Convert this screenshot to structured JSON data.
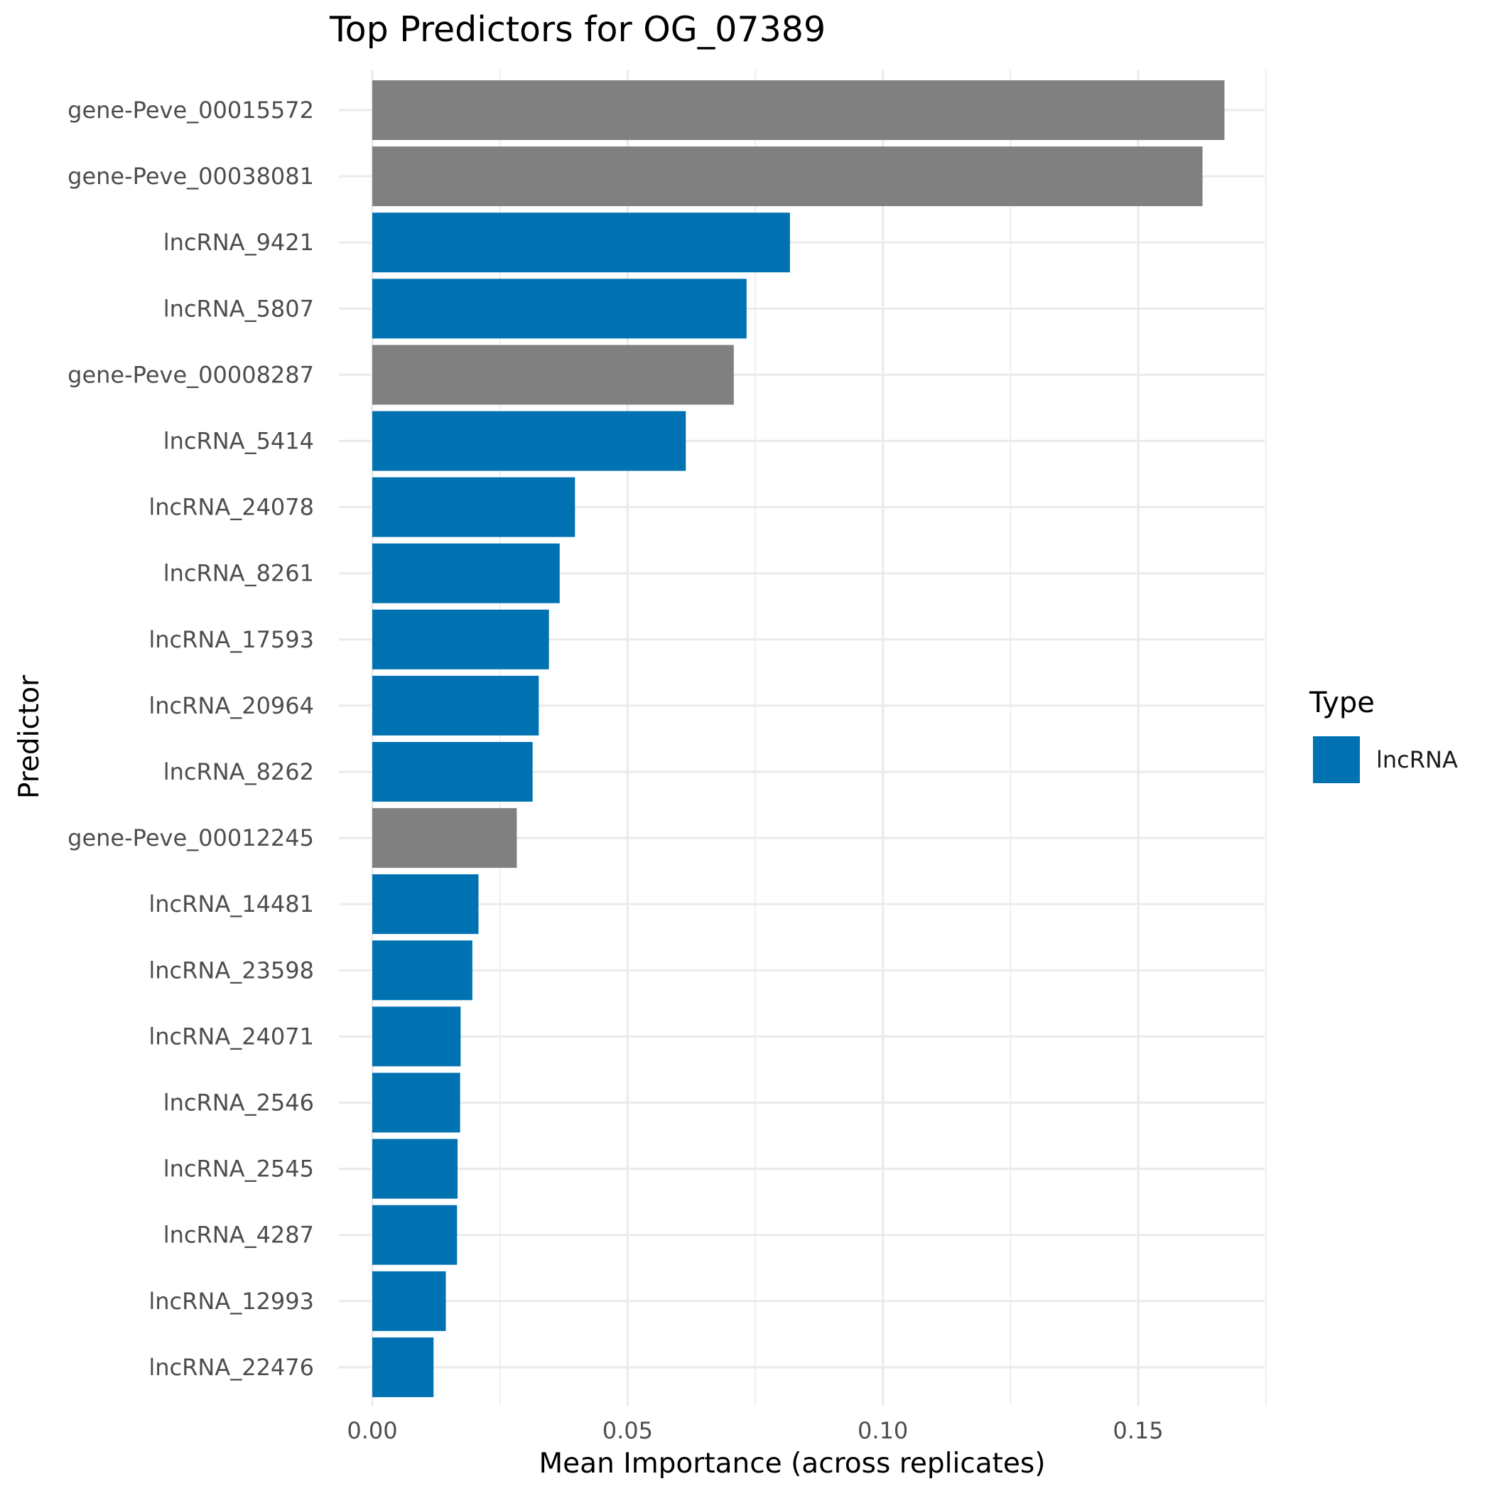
{
  "chart_data": {
    "type": "bar",
    "orientation": "horizontal",
    "title": "Top Predictors for OG_07389",
    "xlabel": "Mean Importance (across replicates)",
    "ylabel": "Predictor",
    "xlim": [
      0,
      0.175
    ],
    "x_ticks": [
      0,
      0.05,
      0.1,
      0.15
    ],
    "x_tick_labels": [
      "0.00",
      "0.05",
      "0.10",
      "0.15"
    ],
    "grid": true,
    "legend": {
      "title": "Type",
      "placement": "right",
      "entries": [
        {
          "label": "lncRNA",
          "color": "#0072B2"
        }
      ]
    },
    "colors": {
      "lncRNA": "#0072B2",
      "gene": "#808080"
    },
    "categories": [
      "gene-Peve_00015572",
      "gene-Peve_00038081",
      "lncRNA_9421",
      "lncRNA_5807",
      "gene-Peve_00008287",
      "lncRNA_5414",
      "lncRNA_24078",
      "lncRNA_8261",
      "lncRNA_17593",
      "lncRNA_20964",
      "lncRNA_8262",
      "gene-Peve_00012245",
      "lncRNA_14481",
      "lncRNA_23598",
      "lncRNA_24071",
      "lncRNA_2546",
      "lncRNA_2545",
      "lncRNA_4287",
      "lncRNA_12993",
      "lncRNA_22476"
    ],
    "values": [
      0.1669,
      0.1626,
      0.0818,
      0.0733,
      0.0708,
      0.0614,
      0.0397,
      0.0367,
      0.0346,
      0.0326,
      0.0314,
      0.0283,
      0.0208,
      0.0196,
      0.0173,
      0.0172,
      0.0167,
      0.0166,
      0.0144,
      0.012
    ],
    "types": [
      "gene",
      "gene",
      "lncRNA",
      "lncRNA",
      "gene",
      "lncRNA",
      "lncRNA",
      "lncRNA",
      "lncRNA",
      "lncRNA",
      "lncRNA",
      "gene",
      "lncRNA",
      "lncRNA",
      "lncRNA",
      "lncRNA",
      "lncRNA",
      "lncRNA",
      "lncRNA",
      "lncRNA"
    ]
  }
}
